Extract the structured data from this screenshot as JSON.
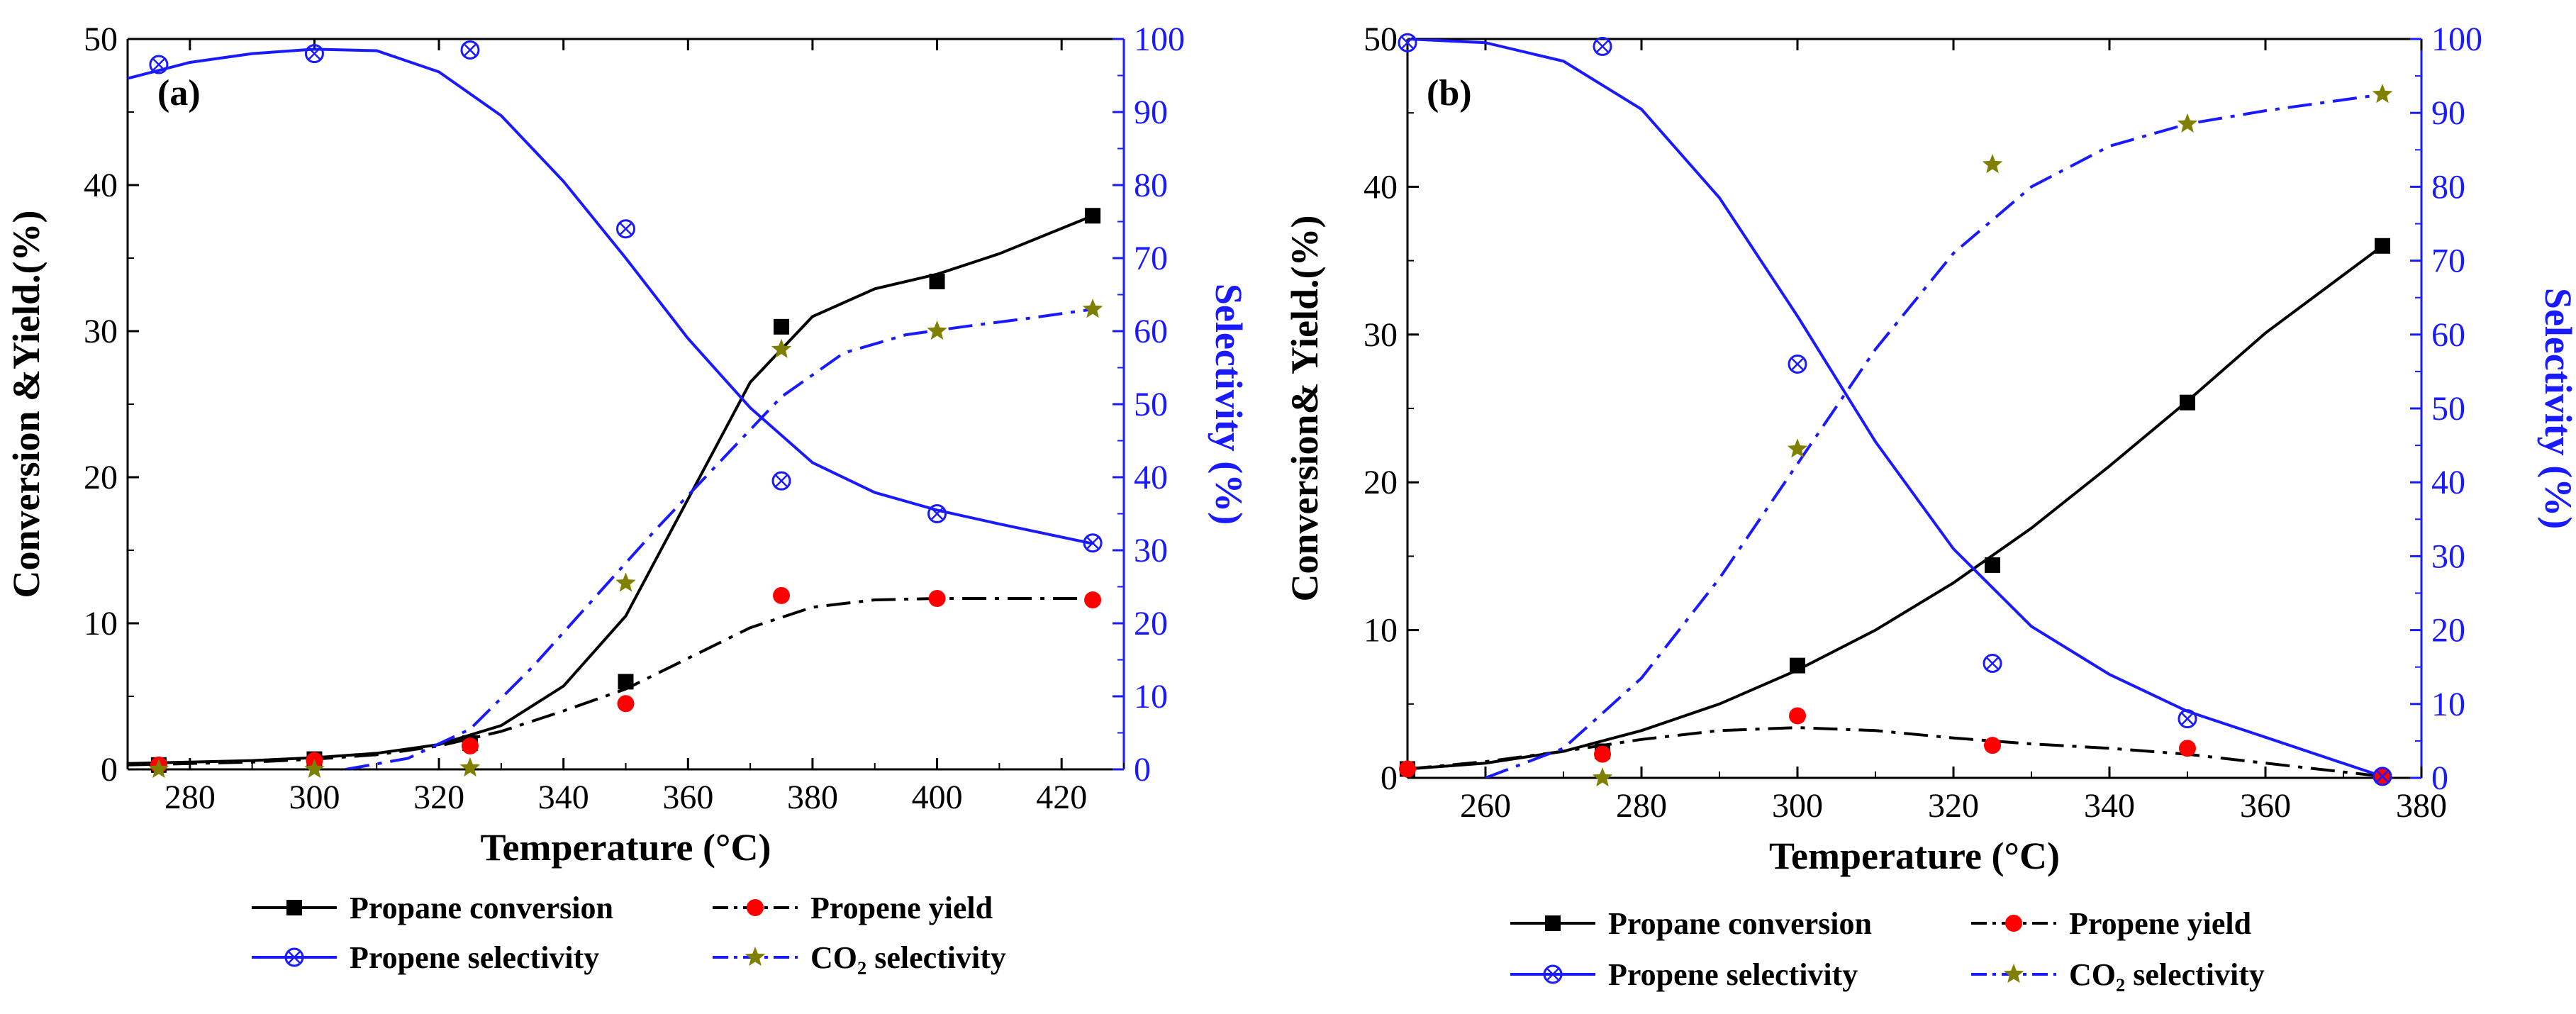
{
  "colors": {
    "black": "#000000",
    "blue": "#1a1aff",
    "red": "#ff0000",
    "olive": "#808000"
  },
  "chart_data": [
    {
      "type": "line",
      "panel_label": "(a)",
      "xlabel": "Temperature (°C)",
      "ylabel_left": "Conversion &Yield.(%)",
      "ylabel_right": "Selectivity (%)",
      "xlim": [
        270,
        430
      ],
      "ylim_left": [
        0,
        50
      ],
      "ylim_right": [
        0,
        100
      ],
      "xticks": [
        280,
        300,
        320,
        340,
        360,
        380,
        400,
        420
      ],
      "yticks_left": [
        0,
        10,
        20,
        30,
        40,
        50
      ],
      "yticks_right": [
        0,
        10,
        20,
        30,
        40,
        50,
        60,
        70,
        80,
        90,
        100
      ],
      "series": [
        {
          "name": "Propane conversion",
          "axis": "left",
          "marker": "square",
          "color": "#000000",
          "dash": "solid",
          "points": [
            [
              275,
              0.3
            ],
            [
              300,
              0.7
            ],
            [
              325,
              1.8
            ],
            [
              350,
              6.0
            ],
            [
              375,
              30.3
            ],
            [
              400,
              33.4
            ],
            [
              425,
              37.9
            ]
          ],
          "fit": [
            [
              270,
              0.4
            ],
            [
              280,
              0.5
            ],
            [
              290,
              0.6
            ],
            [
              300,
              0.8
            ],
            [
              310,
              1.1
            ],
            [
              320,
              1.7
            ],
            [
              330,
              3.0
            ],
            [
              340,
              5.7
            ],
            [
              350,
              10.5
            ],
            [
              360,
              18.5
            ],
            [
              370,
              26.5
            ],
            [
              380,
              31.0
            ],
            [
              390,
              32.9
            ],
            [
              400,
              33.9
            ],
            [
              410,
              35.3
            ],
            [
              425,
              37.9
            ]
          ]
        },
        {
          "name": "Propene yield",
          "axis": "left",
          "marker": "circle",
          "color": "#000000",
          "markerColor": "#ff0000",
          "dash": "dashdot",
          "points": [
            [
              275,
              0.3
            ],
            [
              300,
              0.6
            ],
            [
              325,
              1.6
            ],
            [
              350,
              4.5
            ],
            [
              375,
              11.9
            ],
            [
              400,
              11.7
            ],
            [
              425,
              11.6
            ]
          ],
          "fit": [
            [
              270,
              0.3
            ],
            [
              280,
              0.4
            ],
            [
              290,
              0.5
            ],
            [
              300,
              0.7
            ],
            [
              310,
              1.0
            ],
            [
              320,
              1.6
            ],
            [
              330,
              2.6
            ],
            [
              340,
              4.0
            ],
            [
              350,
              5.5
            ],
            [
              360,
              7.6
            ],
            [
              370,
              9.7
            ],
            [
              380,
              11.1
            ],
            [
              390,
              11.6
            ],
            [
              400,
              11.7
            ],
            [
              425,
              11.7
            ]
          ]
        },
        {
          "name": "Propene selectivity",
          "axis": "right",
          "marker": "circle-cross",
          "color": "#1a1aff",
          "dash": "solid",
          "points": [
            [
              275,
              96.5
            ],
            [
              300,
              98.0
            ],
            [
              325,
              98.5
            ],
            [
              350,
              74.0
            ],
            [
              375,
              39.5
            ],
            [
              400,
              35.0
            ],
            [
              425,
              31.0
            ]
          ],
          "fit": [
            [
              270,
              94.6
            ],
            [
              280,
              96.8
            ],
            [
              290,
              98.0
            ],
            [
              300,
              98.6
            ],
            [
              310,
              98.4
            ],
            [
              320,
              95.5
            ],
            [
              330,
              89.5
            ],
            [
              340,
              80.5
            ],
            [
              350,
              70.0
            ],
            [
              360,
              59.0
            ],
            [
              370,
              49.5
            ],
            [
              380,
              42.0
            ],
            [
              390,
              37.9
            ],
            [
              400,
              35.5
            ],
            [
              410,
              33.6
            ],
            [
              425,
              30.9
            ]
          ]
        },
        {
          "name": "CO₂ selectivity",
          "axis": "right",
          "marker": "star",
          "color": "#1a1aff",
          "markerColor": "#808000",
          "dash": "dashdot",
          "points": [
            [
              275,
              0.0
            ],
            [
              300,
              0.0
            ],
            [
              325,
              0.2
            ],
            [
              350,
              25.5
            ],
            [
              375,
              57.5
            ],
            [
              400,
              60.0
            ],
            [
              425,
              63.0
            ]
          ],
          "fit": [
            [
              305,
              0.0
            ],
            [
              315,
              1.5
            ],
            [
              325,
              5.5
            ],
            [
              335,
              14.0
            ],
            [
              345,
              23.5
            ],
            [
              355,
              33.0
            ],
            [
              365,
              42.0
            ],
            [
              375,
              51.0
            ],
            [
              385,
              57.0
            ],
            [
              395,
              59.5
            ],
            [
              405,
              60.7
            ],
            [
              415,
              61.8
            ],
            [
              425,
              63.0
            ]
          ]
        }
      ],
      "legend": [
        "Propane conversion",
        "Propene yield",
        "Propene selectivity",
        "CO₂ selectivity"
      ],
      "legend_placement": "bottom"
    },
    {
      "type": "line",
      "panel_label": "(b)",
      "xlabel": "Temperature (°C)",
      "ylabel_left": "Conversion& Yield.(%)",
      "ylabel_right": "Selectivity (%)",
      "xlim": [
        250,
        380
      ],
      "ylim_left": [
        0,
        50
      ],
      "ylim_right": [
        0,
        100
      ],
      "xticks": [
        260,
        280,
        300,
        320,
        340,
        360,
        380
      ],
      "yticks_left": [
        0,
        10,
        20,
        30,
        40,
        50
      ],
      "yticks_right": [
        0,
        10,
        20,
        30,
        40,
        50,
        60,
        70,
        80,
        90,
        100
      ],
      "series": [
        {
          "name": "Propane conversion",
          "axis": "left",
          "marker": "square",
          "color": "#000000",
          "dash": "solid",
          "points": [
            [
              250,
              0.6
            ],
            [
              275,
              1.8
            ],
            [
              300,
              7.6
            ],
            [
              325,
              14.4
            ],
            [
              350,
              25.4
            ],
            [
              375,
              36.0
            ]
          ],
          "fit": [
            [
              250,
              0.6
            ],
            [
              260,
              1.0
            ],
            [
              270,
              1.8
            ],
            [
              280,
              3.2
            ],
            [
              290,
              5.0
            ],
            [
              300,
              7.3
            ],
            [
              310,
              10.0
            ],
            [
              320,
              13.2
            ],
            [
              330,
              16.9
            ],
            [
              340,
              21.1
            ],
            [
              350,
              25.5
            ],
            [
              360,
              30.1
            ],
            [
              375,
              36.0
            ]
          ]
        },
        {
          "name": "Propene yield",
          "axis": "left",
          "marker": "circle",
          "color": "#000000",
          "markerColor": "#ff0000",
          "dash": "dashdot",
          "points": [
            [
              250,
              0.6
            ],
            [
              275,
              1.6
            ],
            [
              300,
              4.2
            ],
            [
              325,
              2.2
            ],
            [
              350,
              2.0
            ],
            [
              375,
              0.1
            ]
          ],
          "fit": [
            [
              250,
              0.6
            ],
            [
              260,
              1.1
            ],
            [
              270,
              1.8
            ],
            [
              280,
              2.6
            ],
            [
              290,
              3.2
            ],
            [
              300,
              3.4
            ],
            [
              310,
              3.2
            ],
            [
              320,
              2.7
            ],
            [
              330,
              2.3
            ],
            [
              340,
              2.0
            ],
            [
              350,
              1.6
            ],
            [
              360,
              1.0
            ],
            [
              375,
              0.1
            ]
          ]
        },
        {
          "name": "Propene selectivity",
          "axis": "right",
          "marker": "circle-cross",
          "color": "#1a1aff",
          "dash": "solid",
          "points": [
            [
              250,
              99.5
            ],
            [
              275,
              99.0
            ],
            [
              300,
              56.0
            ],
            [
              325,
              15.5
            ],
            [
              350,
              8.0
            ],
            [
              375,
              0.2
            ]
          ],
          "fit": [
            [
              250,
              100.0
            ],
            [
              260,
              99.5
            ],
            [
              270,
              97.0
            ],
            [
              280,
              90.5
            ],
            [
              290,
              78.5
            ],
            [
              300,
              62.5
            ],
            [
              310,
              45.5
            ],
            [
              320,
              31.0
            ],
            [
              330,
              20.5
            ],
            [
              340,
              14.0
            ],
            [
              350,
              9.0
            ],
            [
              360,
              5.5
            ],
            [
              375,
              0.2
            ]
          ]
        },
        {
          "name": "CO₂ selectivity",
          "axis": "right",
          "marker": "star",
          "color": "#1a1aff",
          "markerColor": "#808000",
          "dash": "dashdot",
          "points": [
            [
              275,
              0.0
            ],
            [
              300,
              44.5
            ],
            [
              325,
              83.0
            ],
            [
              350,
              88.5
            ],
            [
              375,
              92.5
            ]
          ],
          "fit": [
            [
              260,
              0.0
            ],
            [
              270,
              4.0
            ],
            [
              280,
              13.5
            ],
            [
              290,
              27.0
            ],
            [
              300,
              42.5
            ],
            [
              310,
              58.0
            ],
            [
              320,
              71.0
            ],
            [
              330,
              80.0
            ],
            [
              340,
              85.5
            ],
            [
              350,
              88.5
            ],
            [
              360,
              90.3
            ],
            [
              375,
              92.5
            ]
          ]
        }
      ],
      "legend": [
        "Propane conversion",
        "Propene yield",
        "Propene selectivity",
        "CO₂ selectivity"
      ],
      "legend_placement": "bottom"
    }
  ]
}
